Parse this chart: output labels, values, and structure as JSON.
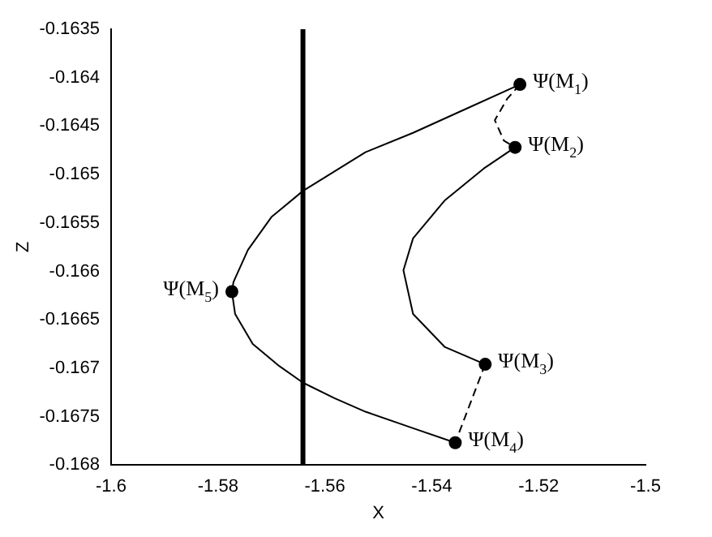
{
  "chart_data": {
    "type": "line",
    "xlabel": "X",
    "ylabel": "Z",
    "xlim": [
      -1.6,
      -1.5
    ],
    "xticks": [
      -1.6,
      -1.58,
      -1.56,
      -1.54,
      -1.52,
      -1.5
    ],
    "ylim": [
      -0.168,
      -0.1635
    ],
    "yticks": [
      -0.168,
      -0.1675,
      -0.167,
      -0.1665,
      -0.166,
      -0.1655,
      -0.165,
      -0.1645,
      -0.164,
      -0.1635
    ],
    "grid": false,
    "legend": false,
    "ref_lines": [
      {
        "axis": "x",
        "value": -1.5641,
        "color": "#000000"
      }
    ],
    "annotations": [
      {
        "text": "Ψ(M$_{1}$)",
        "x": -1.5235,
        "y": -0.16407
      },
      {
        "text": "Ψ(M$_{2}$)",
        "x": -1.5244,
        "y": -0.16472
      },
      {
        "text": "Ψ(M$_{3}$)",
        "x": -1.53,
        "y": -0.16696
      },
      {
        "text": "Ψ(M$_{4}$)",
        "x": -1.5356,
        "y": -0.16777
      },
      {
        "text": "Ψ(M$_{5}$)",
        "x": -1.5774,
        "y": -0.16621
      }
    ],
    "series": [
      {
        "type": "line",
        "color": "#000000",
        "line_style": "solid",
        "marker": "none",
        "x": [
          -1.5235,
          -1.5347,
          -1.5435,
          -1.5524,
          -1.5641,
          -1.57,
          -1.5744,
          -1.5771,
          -1.5774,
          -1.5768,
          -1.5735,
          -1.5685,
          -1.5641,
          -1.5582,
          -1.5524,
          -1.5435,
          -1.5356
        ],
        "values": [
          -0.16407,
          -0.16435,
          -0.16457,
          -0.16477,
          -0.16517,
          -0.16544,
          -0.16578,
          -0.16611,
          -0.16621,
          -0.16644,
          -0.16675,
          -0.16698,
          -0.16715,
          -0.16731,
          -0.16745,
          -0.16762,
          -0.16777
        ]
      },
      {
        "type": "line",
        "color": "#000000",
        "line_style": "solid",
        "marker": "none",
        "x": [
          -1.5244,
          -1.5303,
          -1.5376,
          -1.5435,
          -1.5453,
          -1.5435,
          -1.5376,
          -1.53
        ],
        "values": [
          -0.16472,
          -0.16494,
          -0.16527,
          -0.16566,
          -0.16599,
          -0.16644,
          -0.16678,
          -0.16696
        ]
      },
      {
        "type": "line",
        "color": "#000000",
        "line_style": "dashed",
        "marker": "none",
        "x": [
          -1.5235,
          -1.5259,
          -1.5282,
          -1.5265,
          -1.5244
        ],
        "values": [
          -0.16407,
          -0.16422,
          -0.16444,
          -0.16465,
          -0.16472
        ]
      },
      {
        "type": "line",
        "color": "#000000",
        "line_style": "dashed",
        "marker": "none",
        "x": [
          -1.53,
          -1.5356
        ],
        "values": [
          -0.16696,
          -0.16777
        ]
      },
      {
        "type": "scatter",
        "color": "#000000",
        "marker": "circle",
        "x": [
          -1.5235,
          -1.5244,
          -1.53,
          -1.5356,
          -1.5774
        ],
        "values": [
          -0.16407,
          -0.16472,
          -0.16696,
          -0.16777,
          -0.16621
        ]
      }
    ]
  }
}
